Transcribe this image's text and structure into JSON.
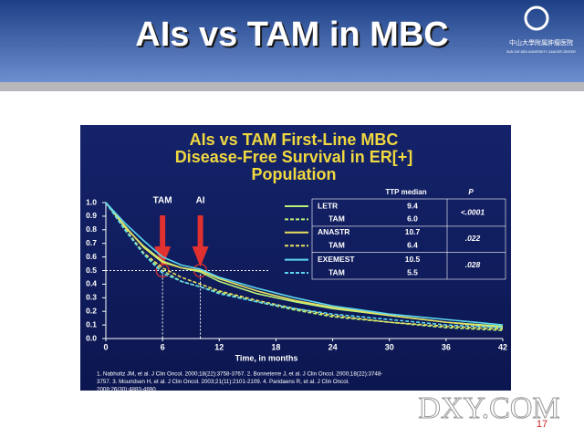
{
  "header": {
    "title": "AIs vs TAM in MBC",
    "logo_text": "中山大學附属肿瘤医院",
    "logo_subtext": "SUN YAT-SEN UNIVERSITY CANCER CENTER"
  },
  "chart_data": {
    "type": "line",
    "title": [
      "AIs vs TAM First-Line MBC",
      "Disease-Free Survival in ER[+]",
      "Population"
    ],
    "x_label": "Time, in months",
    "x": [
      0,
      2,
      4,
      6,
      8,
      10,
      12,
      16,
      20,
      24,
      30,
      36,
      42
    ],
    "xlim": [
      0,
      42
    ],
    "xticks": [
      0,
      6,
      12,
      18,
      24,
      30,
      36,
      42
    ],
    "ylim": [
      0,
      1
    ],
    "yticks": [
      {
        "value": 0,
        "label": "0.0"
      },
      0.1,
      0.2,
      0.3,
      0.4,
      0.5,
      0.6,
      0.7,
      0.8,
      0.9,
      {
        "value": 1,
        "label": "1.0"
      }
    ],
    "series": [
      {
        "name": "LETR",
        "color": "#b8f07a",
        "dashed": false,
        "values": [
          1.0,
          0.82,
          0.68,
          0.57,
          0.52,
          0.49,
          0.42,
          0.33,
          0.27,
          0.22,
          0.17,
          0.12,
          0.09
        ]
      },
      {
        "name": "TAM",
        "color": "#b8f07a",
        "dashed": true,
        "values": [
          1.0,
          0.8,
          0.62,
          0.5,
          0.42,
          0.38,
          0.34,
          0.27,
          0.21,
          0.16,
          0.12,
          0.08,
          0.06
        ]
      },
      {
        "name": "ANASTR",
        "color": "#e8e060",
        "dashed": false,
        "values": [
          1.0,
          0.83,
          0.67,
          0.56,
          0.52,
          0.5,
          0.44,
          0.35,
          0.28,
          0.23,
          0.17,
          0.12,
          0.08
        ]
      },
      {
        "name": "TAM",
        "color": "#e8e060",
        "dashed": true,
        "values": [
          1.0,
          0.81,
          0.63,
          0.52,
          0.45,
          0.4,
          0.35,
          0.28,
          0.22,
          0.17,
          0.12,
          0.09,
          0.07
        ]
      },
      {
        "name": "EXEMEST",
        "color": "#5cd8f0",
        "dashed": false,
        "values": [
          1.0,
          0.85,
          0.72,
          0.6,
          0.54,
          0.51,
          0.45,
          0.37,
          0.3,
          0.24,
          0.18,
          0.14,
          0.1
        ]
      },
      {
        "name": "TAM",
        "color": "#5cd8f0",
        "dashed": true,
        "values": [
          1.0,
          0.8,
          0.62,
          0.48,
          0.42,
          0.38,
          0.33,
          0.27,
          0.22,
          0.18,
          0.14,
          0.1,
          0.08
        ]
      }
    ],
    "legend_table": {
      "headers": [
        "TTP median",
        "P"
      ],
      "medians": [
        "9.4",
        "6.0",
        "10.7",
        "6.4",
        "10.5",
        "5.5"
      ],
      "p_values": [
        "<.0001",
        ".022",
        ".028"
      ]
    },
    "annotations": [
      {
        "text": "TAM",
        "x": 6
      },
      {
        "text": "AI",
        "x": 10
      }
    ],
    "reference_y": 0.5
  },
  "footer": {
    "references": [
      "1. Nabholtz JM, et al. J Clin Oncol. 2000;18(22):3758-3767. 2. Bonneterre J, et al. J Clin Oncol. 2000;18(22):3748-",
      "3757. 3. Mouridsen H, et al. J Clin Oncol. 2003;21(11):2101-2109. 4. Paridaens R, et al. J Clin Oncol.",
      "2008;26(30):4883-4890."
    ],
    "watermark": "DXY.COM",
    "page_number": "17"
  }
}
